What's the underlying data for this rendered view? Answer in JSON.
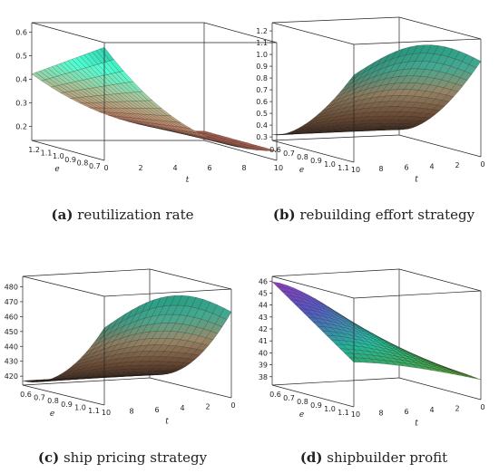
{
  "chart_data": [
    {
      "type": "surface3d",
      "label": "(a)",
      "caption": "reutilization rate",
      "xlabel": "e",
      "ylabel": "t",
      "x_ticks": [
        "1.2",
        "1.1",
        "1.0",
        "0.9",
        "0.8",
        "0.7"
      ],
      "t_ticks": [
        "0",
        "2",
        "4",
        "6",
        "8",
        "10"
      ],
      "z_ticks": [
        "0.2",
        "0.3",
        "0.4",
        "0.5",
        "0.6"
      ],
      "zlim": [
        0.14,
        0.64
      ],
      "colors": [
        "#f07060",
        "#c88e6e",
        "#9bb48c",
        "#46e8c0",
        "#1fa98a"
      ]
    },
    {
      "type": "surface3d",
      "label": "(b)",
      "caption": "rebuilding effort strategy",
      "xlabel": "e",
      "ylabel": "t",
      "x_ticks": [
        "0.6",
        "0.7",
        "0.8",
        "0.9",
        "1.0",
        "1.1"
      ],
      "t_ticks": [
        "10",
        "8",
        "6",
        "4",
        "2",
        "0"
      ],
      "z_ticks": [
        "0.3",
        "0.4",
        "0.5",
        "0.6",
        "0.7",
        "0.8",
        "0.9",
        "1.0",
        "1.1",
        "1.2"
      ],
      "zlim": [
        0.27,
        1.27
      ],
      "colors": [
        "#2e1d15",
        "#6a4a34",
        "#8c7b5e",
        "#3e9a83",
        "#1e8c74"
      ]
    },
    {
      "type": "surface3d",
      "label": "(c)",
      "caption": "ship pricing strategy",
      "xlabel": "e",
      "ylabel": "t",
      "x_ticks": [
        "0.6",
        "0.7",
        "0.8",
        "0.9",
        "1.0",
        "1.1"
      ],
      "t_ticks": [
        "10",
        "8",
        "6",
        "4",
        "2",
        "0"
      ],
      "z_ticks": [
        "420",
        "430",
        "440",
        "450",
        "460",
        "470",
        "480"
      ],
      "zlim": [
        414,
        487
      ],
      "colors": [
        "#2e1d15",
        "#6a4a34",
        "#8c7b5e",
        "#3e9a83",
        "#1e8c74"
      ]
    },
    {
      "type": "surface3d",
      "label": "(d)",
      "caption": "shipbuilder profit",
      "xlabel": "e",
      "ylabel": "t",
      "x_ticks": [
        "0.6",
        "0.7",
        "0.8",
        "0.9",
        "1.0",
        "1.1"
      ],
      "t_ticks": [
        "10",
        "8",
        "6",
        "4",
        "2",
        "0"
      ],
      "z_ticks": [
        "38",
        "39",
        "40",
        "41",
        "42",
        "43",
        "44",
        "45",
        "46"
      ],
      "zlim": [
        37.3,
        46.4
      ],
      "colors": [
        "#8a9a1a",
        "#5fc040",
        "#2ee6c0",
        "#6b6cf0",
        "#c040e8"
      ]
    }
  ]
}
